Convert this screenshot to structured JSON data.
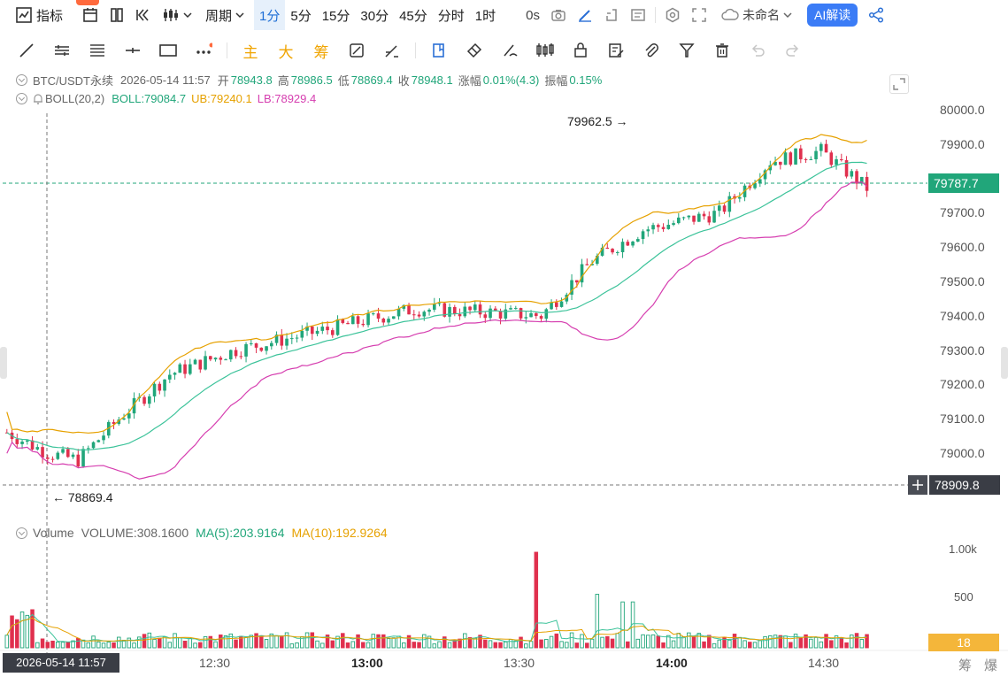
{
  "toolbar": {
    "indicator_label": "指标",
    "period_label": "周期",
    "intervals": [
      "1分",
      "5分",
      "15分",
      "30分",
      "45分",
      "分时",
      "1时"
    ],
    "active_interval": "1分",
    "countdown": "0s",
    "layout_name": "未命名",
    "ai_label": "AI解读"
  },
  "drawing_tools": {
    "main_label": "主",
    "big_label": "大",
    "chip_label": "筹"
  },
  "ohlc": {
    "symbol": "BTC/USDT永续",
    "datetime": "2026-05-14 11:57",
    "open_label": "开",
    "open": "78943.8",
    "high_label": "高",
    "high": "78986.5",
    "low_label": "低",
    "low": "78869.4",
    "close_label": "收",
    "close": "78948.1",
    "change_label": "涨幅",
    "change": "0.01%(4.3)",
    "amp_label": "振幅",
    "amp": "0.15%"
  },
  "boll": {
    "name": "BOLL(20,2)",
    "mid": "BOLL:79084.7",
    "ub": "UB:79240.1",
    "lb": "LB:78929.4"
  },
  "volume_info": {
    "name": "Volume",
    "volume": "VOLUME:308.1600",
    "ma5": "MA(5):203.9164",
    "ma10": "MA(10):192.9264"
  },
  "price_axis": {
    "labels": [
      "80000.0",
      "79900.0",
      "79800.0",
      "79700.0",
      "79600.0",
      "79500.0",
      "79400.0",
      "79300.0",
      "79200.0",
      "79100.0",
      "79000.0"
    ],
    "current_price": "79787.7",
    "crosshair_price": "78909.8"
  },
  "volume_axis": {
    "labels": [
      "1.00k",
      "500"
    ],
    "current_volume": "18"
  },
  "time_axis": {
    "labels": [
      "12:30",
      "13:00",
      "13:30",
      "14:00",
      "14:30"
    ],
    "crosshair_time": "2026-05-14 11:57"
  },
  "annotations": {
    "high_mark": "79962.5",
    "low_mark": "78869.4"
  },
  "footer": {
    "chip_label": "筹",
    "burst_label": "爆"
  },
  "colors": {
    "up": "#21a67a",
    "down": "#e0304e",
    "ub": "#e6a100",
    "lb": "#d63fb0",
    "mid": "#3cc39a"
  }
}
